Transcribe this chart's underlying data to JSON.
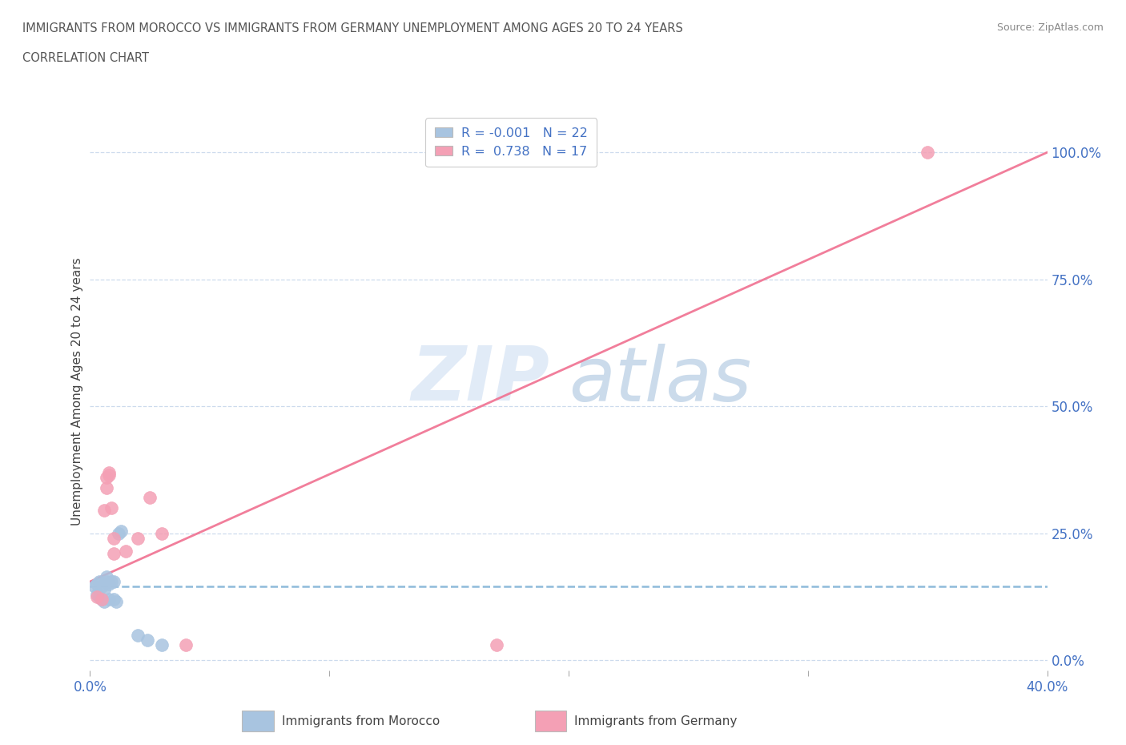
{
  "title_line1": "IMMIGRANTS FROM MOROCCO VS IMMIGRANTS FROM GERMANY UNEMPLOYMENT AMONG AGES 20 TO 24 YEARS",
  "title_line2": "CORRELATION CHART",
  "source": "Source: ZipAtlas.com",
  "ylabel": "Unemployment Among Ages 20 to 24 years",
  "xlim": [
    0.0,
    0.4
  ],
  "ylim": [
    -0.02,
    1.08
  ],
  "yticks": [
    0.0,
    0.25,
    0.5,
    0.75,
    1.0
  ],
  "ytick_labels": [
    "0.0%",
    "25.0%",
    "50.0%",
    "75.0%",
    "100.0%"
  ],
  "xticks": [
    0.0,
    0.1,
    0.2,
    0.3,
    0.4
  ],
  "xtick_labels": [
    "0.0%",
    "",
    "",
    "",
    "40.0%"
  ],
  "morocco_color": "#a8c4e0",
  "germany_color": "#f4a0b5",
  "trend_morocco_color": "#7aafd4",
  "trend_germany_color": "#f07090",
  "background_color": "#ffffff",
  "grid_color": "#c8d8ec",
  "watermark_zip": "ZIP",
  "watermark_atlas": "atlas",
  "legend_label1": "R = -0.001   N = 22",
  "legend_label2": "R =  0.738   N = 17",
  "legend_label_bottom1": "Immigrants from Morocco",
  "legend_label_bottom2": "Immigrants from Germany",
  "axis_color": "#4472C4",
  "title_color": "#555555",
  "morocco_x": [
    0.002,
    0.003,
    0.003,
    0.004,
    0.004,
    0.005,
    0.005,
    0.006,
    0.006,
    0.007,
    0.007,
    0.008,
    0.008,
    0.009,
    0.01,
    0.01,
    0.011,
    0.012,
    0.013,
    0.02,
    0.024,
    0.03
  ],
  "morocco_y": [
    0.145,
    0.13,
    0.15,
    0.155,
    0.125,
    0.145,
    0.12,
    0.14,
    0.115,
    0.155,
    0.165,
    0.15,
    0.12,
    0.155,
    0.155,
    0.12,
    0.115,
    0.25,
    0.255,
    0.05,
    0.04,
    0.03
  ],
  "germany_x": [
    0.003,
    0.005,
    0.006,
    0.007,
    0.007,
    0.008,
    0.008,
    0.009,
    0.01,
    0.01,
    0.015,
    0.02,
    0.025,
    0.03,
    0.04,
    0.17,
    0.35
  ],
  "germany_y": [
    0.125,
    0.12,
    0.295,
    0.34,
    0.36,
    0.365,
    0.37,
    0.3,
    0.21,
    0.24,
    0.215,
    0.24,
    0.32,
    0.25,
    0.03,
    0.03,
    1.0
  ],
  "trend_germany_x0": 0.0,
  "trend_germany_x1": 0.4,
  "trend_germany_y0": 0.155,
  "trend_germany_y1": 1.0,
  "trend_morocco_y_level": 0.145
}
